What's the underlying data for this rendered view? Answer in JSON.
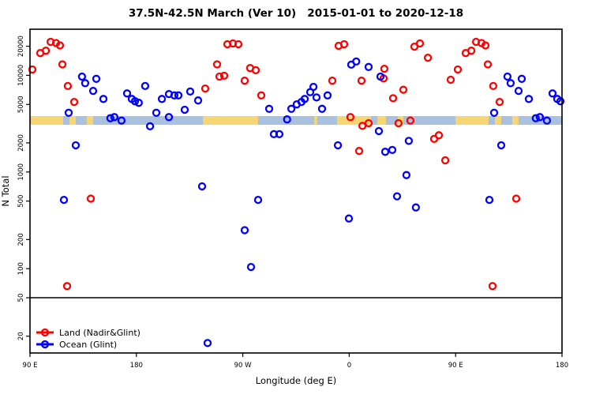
{
  "title": "37.5N-42.5N March (Ver 10)   2015-01-01 to 2020-12-18",
  "axes": {
    "x": {
      "label": "Longitude (deg E)",
      "ticks": [
        {
          "pos_deg": 0,
          "label": "90 E"
        },
        {
          "pos_deg": 90,
          "label": "180"
        },
        {
          "pos_deg": 180,
          "label": "90 W"
        },
        {
          "pos_deg": 270,
          "label": "0"
        },
        {
          "pos_deg": 360,
          "label": "90 E"
        },
        {
          "pos_deg": 450,
          "label": "180"
        }
      ]
    },
    "y": {
      "label": "N Total",
      "ticks": [
        {
          "value": 20,
          "label": "20"
        },
        {
          "value": 50,
          "label": "50"
        },
        {
          "value": 100,
          "label": "100"
        },
        {
          "value": 200,
          "label": "200"
        },
        {
          "value": 500,
          "label": "500"
        },
        {
          "value": 1000,
          "label": "1000"
        },
        {
          "value": 2000,
          "label": "2000"
        },
        {
          "value": 5000,
          "label": "5000"
        },
        {
          "value": 10000,
          "label": "10000"
        },
        {
          "value": 20000,
          "label": "20000"
        }
      ]
    }
  },
  "legend": {
    "items": [
      {
        "label": "Land (Nadir&Glint)",
        "color": "#ff0000"
      },
      {
        "label": "Ocean (Glint)",
        "color": "#0000ff"
      }
    ]
  },
  "colors": {
    "land_point": "#ff0000",
    "ocean_point": "#0000ff",
    "band_land": "#f6d573",
    "band_ocean": "#a9c0df",
    "axis": "#000000"
  },
  "chart_data": {
    "type": "scatter",
    "title": "37.5N-42.5N March (Ver 10)   2015-01-01 to 2020-12-18",
    "xlabel": "Longitude (deg E)",
    "ylabel": "N Total",
    "x_axis_note": "axis spans 450 deg: 90E -> 180 -> 90W -> 0 -> 90E -> 180; data with lon >= 90E is plotted twice (wrap-around)",
    "y_scale": "log10",
    "ylim": [
      13,
      30000
    ],
    "refline_n": 50,
    "map_band": {
      "center_n": 3400,
      "note": "latitude-strip world map drawn across plot; land=yellow, ocean=light blue",
      "land_segments_lon": [
        [
          90,
          118
        ],
        [
          123.4,
          128.7
        ],
        [
          138,
          143.4
        ],
        [
          -123.5,
          -76.8
        ],
        [
          -29.4,
          -26.7
        ],
        [
          -10,
          18.7
        ],
        [
          24,
          31.4
        ],
        [
          41.4,
          46.1
        ],
        [
          54.1,
          90
        ]
      ]
    },
    "series": [
      {
        "name": "Land (Nadir&Glint)",
        "color": "#ff0000",
        "points": [
          [
            92,
            11500
          ],
          [
            98.7,
            17000
          ],
          [
            103.4,
            18000
          ],
          [
            107.4,
            22200
          ],
          [
            112,
            21600
          ],
          [
            115.4,
            20400
          ],
          [
            117.4,
            13000
          ],
          [
            122,
            7750
          ],
          [
            127.4,
            5300
          ],
          [
            141.4,
            530
          ],
          [
            121.4,
            66
          ],
          [
            -121.5,
            7300
          ],
          [
            -111.5,
            13000
          ],
          [
            -109.5,
            9700
          ],
          [
            -105.5,
            9900
          ],
          [
            -102.8,
            21000
          ],
          [
            -98.1,
            21400
          ],
          [
            -93.5,
            21000
          ],
          [
            -88.1,
            8800
          ],
          [
            -83.5,
            11900
          ],
          [
            -78.8,
            11300
          ],
          [
            -74.1,
            6200
          ],
          [
            -14,
            8800
          ],
          [
            -8.7,
            20200
          ],
          [
            -4,
            21000
          ],
          [
            1.3,
            3700
          ],
          [
            8.7,
            1650
          ],
          [
            10.7,
            8800
          ],
          [
            11.4,
            3000
          ],
          [
            16.7,
            3200
          ],
          [
            29.4,
            9300
          ],
          [
            30,
            11700
          ],
          [
            37.4,
            5800
          ],
          [
            42,
            3200
          ],
          [
            46.1,
            7100
          ],
          [
            52,
            3400
          ],
          [
            55.4,
            19800
          ],
          [
            60.1,
            21400
          ],
          [
            66.8,
            15200
          ],
          [
            72.1,
            2200
          ],
          [
            76.1,
            2400
          ],
          [
            81.5,
            1320
          ],
          [
            86.1,
            9000
          ]
        ]
      },
      {
        "name": "Ocean (Glint)",
        "color": "#0000ff",
        "points": [
          [
            134,
            9700
          ],
          [
            136.7,
            8300
          ],
          [
            143.4,
            6900
          ],
          [
            146.1,
            9200
          ],
          [
            152.1,
            5700
          ],
          [
            122.7,
            4100
          ],
          [
            158,
            3600
          ],
          [
            161.4,
            3700
          ],
          [
            167.4,
            3400
          ],
          [
            172.1,
            6500
          ],
          [
            176.1,
            5700
          ],
          [
            178.8,
            5400
          ],
          [
            128.7,
            1890
          ],
          [
            118.7,
            515
          ],
          [
            -177.7,
            5200
          ],
          [
            -172.3,
            7750
          ],
          [
            -168.2,
            2970
          ],
          [
            -162.9,
            4100
          ],
          [
            -158.2,
            5700
          ],
          [
            -152.2,
            6400
          ],
          [
            -152.2,
            3700
          ],
          [
            -147.6,
            6200
          ],
          [
            -144.2,
            6200
          ],
          [
            -138.9,
            4400
          ],
          [
            -134.2,
            6800
          ],
          [
            -127.5,
            5500
          ],
          [
            -124.2,
            710
          ],
          [
            -119.5,
            17
          ],
          [
            -88.1,
            250
          ],
          [
            -82.8,
            104
          ],
          [
            -76.8,
            515
          ],
          [
            -67.4,
            4500
          ],
          [
            -63.4,
            2460
          ],
          [
            -58.8,
            2460
          ],
          [
            -52.3,
            3500
          ],
          [
            -48.7,
            4500
          ],
          [
            -44.1,
            5000
          ],
          [
            -40.1,
            5300
          ],
          [
            -37.4,
            5700
          ],
          [
            -32.7,
            6700
          ],
          [
            -30,
            7600
          ],
          [
            -27.4,
            5900
          ],
          [
            -22.7,
            4500
          ],
          [
            -18,
            6200
          ],
          [
            -9.3,
            1890
          ],
          [
            0,
            330
          ],
          [
            2,
            12900
          ],
          [
            6.2,
            13900
          ],
          [
            16.7,
            12200
          ],
          [
            25.4,
            2650
          ],
          [
            26.7,
            9700
          ],
          [
            30.7,
            1620
          ],
          [
            36.7,
            1690
          ],
          [
            40.7,
            560
          ],
          [
            48.7,
            930
          ],
          [
            50.7,
            2100
          ],
          [
            56.7,
            430
          ]
        ]
      }
    ]
  }
}
